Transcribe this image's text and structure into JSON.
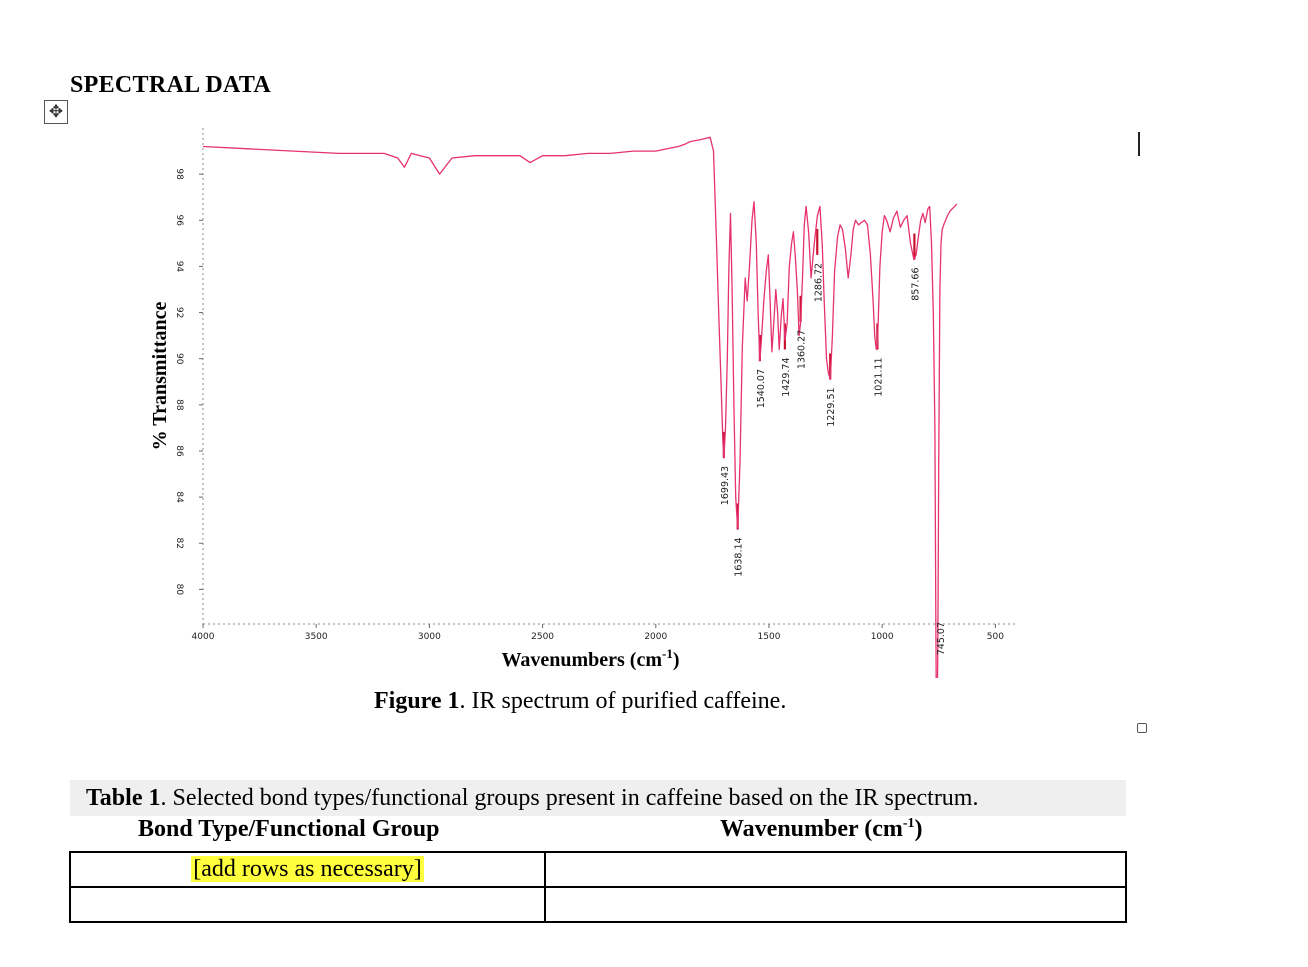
{
  "document": {
    "section_heading": "SPECTRAL DATA",
    "figure_caption_label": "Figure 1",
    "figure_caption_text": ". IR spectrum of purified caffeine.",
    "table_caption_label": "Table 1",
    "table_caption_text": ". Selected bond types/functional groups present in caffeine based on the IR spectrum.",
    "table_columns": [
      {
        "label": "Bond Type/Functional Group"
      },
      {
        "label": "Wavenumber (cm",
        "sup": "-1",
        "suffix": ")"
      }
    ],
    "table_rows": [
      [
        "[add rows as necessary]",
        ""
      ],
      [
        "",
        ""
      ]
    ],
    "placeholder_highlight_color": "#ffff3d"
  },
  "chart_data": {
    "type": "line",
    "xlabel": "Wavenumbers (cm-1)",
    "ylabel": "% Transmittance",
    "x_ticks": [
      4000,
      3500,
      3000,
      2500,
      2000,
      1500,
      1000,
      500
    ],
    "y_ticks": [
      80,
      82,
      84,
      86,
      88,
      90,
      92,
      94,
      96,
      98
    ],
    "xlim": [
      4000,
      400
    ],
    "ylim": [
      78.5,
      100
    ],
    "line_color": "#e6326e",
    "peak_marker_color": "#c8102e",
    "series": [
      {
        "x": [
          4000,
          3800,
          3600,
          3400,
          3200,
          3140,
          3110,
          3080,
          3040,
          3000,
          2955,
          2900,
          2800,
          2700,
          2600,
          2555,
          2500,
          2400,
          2300,
          2200,
          2100,
          2000,
          1950,
          1900,
          1870,
          1850,
          1800,
          1760,
          1745,
          1735,
          1722,
          1712,
          1704,
          1699,
          1692,
          1684,
          1677,
          1670,
          1663,
          1655,
          1647,
          1638,
          1628,
          1618,
          1605,
          1596,
          1586,
          1575,
          1566,
          1556,
          1548,
          1540,
          1532,
          1523,
          1512,
          1503,
          1495,
          1487,
          1479,
          1470,
          1462,
          1455,
          1446,
          1438,
          1429,
          1420,
          1410,
          1400,
          1392,
          1384,
          1375,
          1367,
          1360,
          1352,
          1344,
          1336,
          1325,
          1314,
          1300,
          1286,
          1275,
          1265,
          1256,
          1246,
          1238,
          1229,
          1220,
          1210,
          1197,
          1186,
          1175,
          1163,
          1150,
          1138,
          1128,
          1118,
          1104,
          1092,
          1078,
          1065,
          1052,
          1040,
          1033,
          1026,
          1021,
          1016,
          1010,
          1000,
          990,
          980,
          965,
          950,
          935,
          920,
          905,
          890,
          875,
          860,
          850,
          840,
          830,
          820,
          810,
          798,
          790,
          782,
          774,
          767,
          763,
          759,
          754,
          750,
          745,
          740,
          735,
          728,
          720,
          712,
          700,
          690,
          680,
          670
        ],
        "y": [
          99.2,
          99.1,
          99.0,
          98.9,
          98.9,
          98.7,
          98.3,
          98.9,
          98.8,
          98.7,
          98.0,
          98.7,
          98.8,
          98.8,
          98.8,
          98.5,
          98.8,
          98.8,
          98.9,
          98.9,
          99.0,
          99.0,
          99.1,
          99.2,
          99.3,
          99.4,
          99.5,
          99.6,
          99.0,
          96.0,
          92.0,
          89.0,
          86.5,
          85.7,
          87.0,
          90.0,
          94.0,
          96.3,
          93.0,
          88.0,
          84.0,
          82.6,
          85.5,
          90.5,
          93.5,
          92.5,
          94.0,
          96.0,
          96.8,
          95.0,
          92.0,
          89.9,
          91.0,
          92.5,
          93.8,
          94.5,
          92.5,
          90.3,
          91.5,
          93.0,
          92.0,
          90.4,
          91.8,
          92.6,
          90.8,
          91.5,
          94.0,
          95.0,
          95.5,
          94.5,
          93.0,
          91.0,
          91.6,
          93.5,
          95.8,
          96.6,
          95.5,
          93.5,
          95.0,
          96.2,
          96.6,
          95.0,
          92.5,
          90.0,
          89.4,
          89.1,
          91.0,
          93.8,
          95.3,
          95.8,
          95.6,
          94.8,
          93.5,
          94.5,
          95.6,
          96.0,
          95.8,
          95.9,
          96.0,
          95.8,
          94.5,
          92.5,
          91.0,
          90.4,
          90.6,
          92.0,
          94.0,
          95.5,
          96.2,
          96.0,
          95.5,
          96.1,
          96.4,
          95.7,
          96.0,
          96.2,
          95.0,
          94.3,
          94.5,
          95.3,
          96.0,
          96.3,
          95.9,
          96.5,
          96.6,
          95.0,
          92.0,
          87.0,
          79.0,
          71.6,
          78.0,
          86.0,
          93.0,
          95.0,
          95.6,
          95.8,
          96.0,
          96.2,
          96.4,
          96.5,
          96.6,
          96.7
        ]
      }
    ],
    "peak_labels": [
      "1699.43",
      "1638.14",
      "1540.07",
      "1429.74",
      "1360.27",
      "1286.72",
      "1229.51",
      "1021.11",
      "857.66",
      "745.07"
    ],
    "peak_values": [
      1699.43,
      1638.14,
      1540.07,
      1429.74,
      1360.27,
      1286.72,
      1229.51,
      1021.11,
      857.66,
      745.07
    ],
    "peak_y": [
      85.7,
      82.6,
      89.9,
      90.4,
      91.6,
      94.5,
      89.1,
      90.4,
      94.3,
      71.6
    ]
  }
}
